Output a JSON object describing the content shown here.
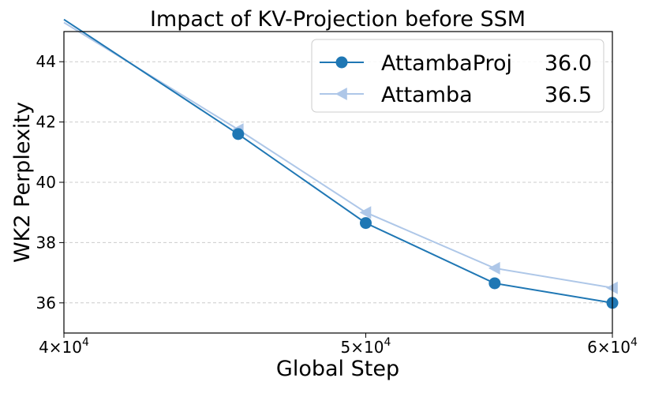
{
  "chart_data": {
    "type": "line",
    "title": "Impact of KV-Projection before SSM",
    "xlabel": "Global Step",
    "ylabel": "WK2 Perplexity",
    "xscale": "log",
    "xlim": [
      40000,
      60000
    ],
    "ylim": [
      35.0,
      45.0
    ],
    "grid": "y-dashed",
    "legend_position": "top-right",
    "xticks": [
      {
        "value": 40000,
        "base": "4",
        "exp": "4"
      },
      {
        "value": 50000,
        "base": "5",
        "exp": "4"
      },
      {
        "value": 60000,
        "base": "6",
        "exp": "4"
      }
    ],
    "yticks": [
      36,
      38,
      40,
      42,
      44
    ],
    "series": [
      {
        "name": "AttambaProj",
        "final_value": "36.0",
        "color": "#1f77b4",
        "marker": "circle",
        "x": [
          40000,
          45500,
          50000,
          55000,
          60000
        ],
        "y": [
          45.4,
          41.6,
          38.65,
          36.65,
          36.0
        ]
      },
      {
        "name": "Attamba",
        "final_value": "36.5",
        "color": "#aec7e8",
        "marker": "triangle-left",
        "x": [
          40000,
          45500,
          50000,
          55000,
          60000
        ],
        "y": [
          45.3,
          41.75,
          39.0,
          37.15,
          36.5
        ]
      }
    ]
  }
}
